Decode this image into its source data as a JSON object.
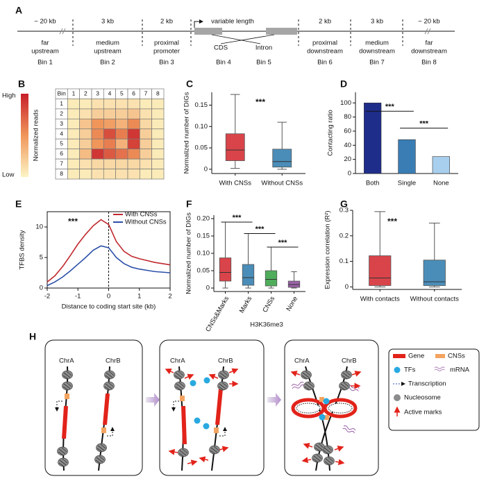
{
  "panel_a": {
    "label": "A",
    "sizes": [
      "~ 20 kb",
      "3 kb",
      "2 kb",
      "variable length",
      "2 kb",
      "3 kb",
      "~ 20 kb"
    ],
    "bins": [
      {
        "name": "Bin 1",
        "region": [
          "far",
          "upstream"
        ]
      },
      {
        "name": "Bin 2",
        "region": [
          "medium",
          "upstream"
        ]
      },
      {
        "name": "Bin 3",
        "region": [
          "proximal",
          "promoter"
        ]
      },
      {
        "name": "Bin 4",
        "region": [
          "CDS"
        ]
      },
      {
        "name": "Bin 5",
        "region": [
          "Intron"
        ]
      },
      {
        "name": "Bin 6",
        "region": [
          "proximal",
          "downstream"
        ]
      },
      {
        "name": "Bin 7",
        "region": [
          "medium",
          "downstream"
        ]
      },
      {
        "name": "Bin 8",
        "region": [
          "far",
          "downstream"
        ]
      }
    ]
  },
  "chart_data": [
    {
      "label": "B",
      "type": "heatmap",
      "corner": "Bin",
      "x_categories": [
        "1",
        "2",
        "3",
        "4",
        "5",
        "6",
        "7",
        "8"
      ],
      "y_categories": [
        "1",
        "2",
        "3",
        "4",
        "5",
        "6",
        "7",
        "8"
      ],
      "values": [
        [
          0.05,
          0.05,
          0.1,
          0.1,
          0.1,
          0.1,
          0.05,
          0.05
        ],
        [
          0.05,
          0.1,
          0.2,
          0.2,
          0.2,
          0.25,
          0.1,
          0.05
        ],
        [
          0.05,
          0.25,
          0.5,
          0.45,
          0.35,
          0.55,
          0.15,
          0.05
        ],
        [
          0.05,
          0.2,
          0.55,
          0.8,
          0.6,
          0.9,
          0.2,
          0.05
        ],
        [
          0.05,
          0.2,
          0.5,
          0.6,
          0.35,
          0.85,
          0.2,
          0.05
        ],
        [
          0.05,
          0.3,
          0.9,
          0.75,
          0.65,
          0.55,
          0.2,
          0.05
        ],
        [
          0.05,
          0.1,
          0.15,
          0.15,
          0.15,
          0.15,
          0.1,
          0.05
        ],
        [
          0.05,
          0.05,
          0.1,
          0.1,
          0.1,
          0.1,
          0.05,
          0.05
        ]
      ],
      "zlim": [
        0,
        1
      ],
      "colors": [
        "#fcf4c4",
        "#f0965a",
        "#c81e2a"
      ],
      "colorbar": {
        "high": "High",
        "low": "Low",
        "label": "Normalized reads"
      }
    },
    {
      "label": "C",
      "type": "box",
      "ylabel": "Normalized number of DIGs",
      "annotation": "***",
      "ylim": [
        -0.01,
        0.18
      ],
      "yticks": [
        0,
        0.05,
        {
          "value": 0.1,
          "label": "0.10"
        },
        0.15
      ],
      "boxes": [
        {
          "name": "With CNSs",
          "color": "#d9444a",
          "min": 0.002,
          "q1": 0.02,
          "median": 0.045,
          "q3": 0.083,
          "max": 0.175
        },
        {
          "name": "Without CNSs",
          "color": "#4a8db8",
          "min": 0,
          "q1": 0.005,
          "median": 0.018,
          "q3": 0.047,
          "max": 0.11
        }
      ]
    },
    {
      "label": "D",
      "type": "bar",
      "ylabel": "Contacting ratio",
      "categories": [
        "Both",
        "Single",
        "None"
      ],
      "values": [
        100,
        48,
        24
      ],
      "colors": [
        "#1f2d8a",
        "#3a7db5",
        "#a9cfee"
      ],
      "ylim": [
        0,
        115
      ],
      "yticks": [
        0,
        20,
        40,
        60,
        80,
        100
      ],
      "significance": [
        {
          "between": [
            "Both",
            "Single"
          ],
          "label": "***"
        },
        {
          "between": [
            "Single",
            "None"
          ],
          "label": "***"
        }
      ]
    },
    {
      "label": "E",
      "type": "line",
      "xlabel": "Distance to coding start site (kb)",
      "ylabel": "TFBS density",
      "annotation": "***",
      "x": [
        -2,
        -1.75,
        -1.5,
        -1.25,
        -1,
        -0.75,
        -0.5,
        -0.25,
        0,
        0.25,
        0.5,
        0.75,
        1,
        1.25,
        1.5,
        1.75,
        2
      ],
      "series": [
        {
          "name": "With CNSs",
          "color": "#c0272d",
          "values": [
            1.0,
            2.0,
            3.5,
            5.3,
            7.2,
            8.8,
            10.2,
            11.2,
            10.4,
            7.6,
            6.0,
            5.2,
            4.8,
            4.5,
            4.2,
            4.0,
            3.8
          ]
        },
        {
          "name": "Without CNSs",
          "color": "#2b4fa8",
          "values": [
            0.4,
            1.0,
            1.8,
            2.8,
            3.9,
            5.0,
            6.2,
            6.9,
            6.6,
            5.0,
            4.0,
            3.4,
            3.1,
            2.9,
            2.7,
            2.6,
            2.5
          ]
        }
      ],
      "xlim": [
        -2,
        2
      ],
      "xticks": [
        -2,
        -1,
        0,
        1,
        2
      ],
      "ylim": [
        0,
        12.5
      ],
      "yticks": [
        0,
        5,
        10
      ],
      "reference_x": 0,
      "legend": "upper right"
    },
    {
      "label": "F",
      "type": "box",
      "ylabel": "Normalized number of DIGs",
      "xlabel": "H3K36me3",
      "ylim": [
        -0.01,
        0.21
      ],
      "yticks": [
        0,
        0.05,
        {
          "value": 0.1,
          "label": "0.10"
        },
        0.15,
        {
          "value": 0.2,
          "label": "0.20"
        }
      ],
      "boxes": [
        {
          "name": "CNSs&Marks",
          "color": "#d9444a",
          "min": 0,
          "q1": 0.02,
          "median": 0.045,
          "q3": 0.087,
          "max": 0.19
        },
        {
          "name": "Marks",
          "color": "#4a8db8",
          "min": 0,
          "q1": 0.008,
          "median": 0.03,
          "q3": 0.068,
          "max": 0.157
        },
        {
          "name": "CNSs",
          "color": "#4fad5b",
          "min": 0,
          "q1": 0.006,
          "median": 0.025,
          "q3": 0.05,
          "max": 0.118
        },
        {
          "name": "None",
          "color": "#9a62a8",
          "min": 0,
          "q1": 0.002,
          "median": 0.01,
          "q3": 0.02,
          "max": 0.047
        }
      ],
      "significance": [
        {
          "between": [
            "CNSs&Marks",
            "Marks"
          ],
          "label": "***"
        },
        {
          "between": [
            "Marks",
            "CNSs"
          ],
          "label": "***"
        },
        {
          "between": [
            "CNSs",
            "None"
          ],
          "label": "***"
        }
      ]
    },
    {
      "label": "G",
      "type": "box",
      "ylabel": "Expression correlation (R²)",
      "annotation": "***",
      "ylim": [
        -0.01,
        0.3
      ],
      "yticks": [
        0,
        0.1,
        0.2,
        0.3
      ],
      "boxes": [
        {
          "name": "With contacts",
          "color": "#d9444a",
          "min": 0,
          "q1": 0.005,
          "median": 0.035,
          "q3": 0.122,
          "max": 0.295
        },
        {
          "name": "Without contacts",
          "color": "#4a8db8",
          "min": 0,
          "q1": 0.005,
          "median": 0.02,
          "q3": 0.105,
          "max": 0.25
        }
      ]
    }
  ],
  "panel_h": {
    "label": "H",
    "chromosomes": [
      "ChrA",
      "ChrB"
    ],
    "legend": [
      "Gene",
      "CNSs",
      "TFs",
      "mRNA",
      "Transcription",
      "Nucleosome",
      "Active marks"
    ]
  }
}
